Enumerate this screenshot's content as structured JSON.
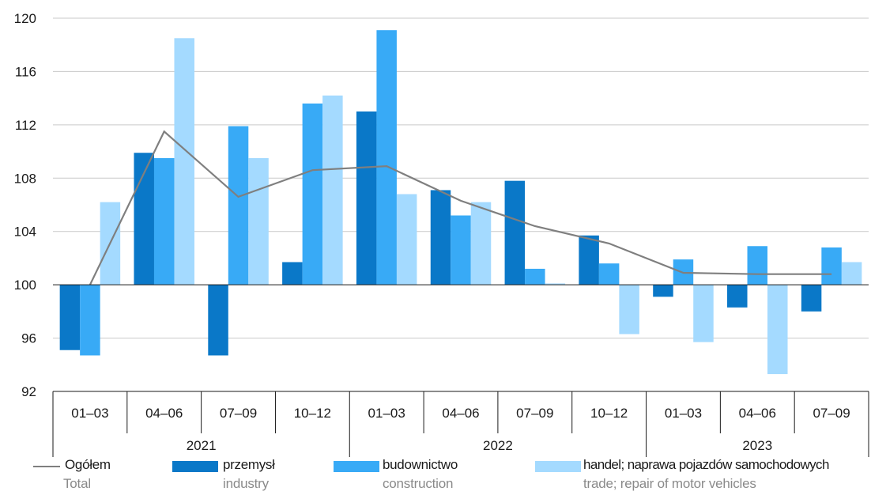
{
  "chart_data": {
    "type": "bar",
    "categories": [
      "01–03",
      "04–06",
      "07–09",
      "10–12",
      "01–03",
      "04–06",
      "07–09",
      "10–12",
      "01–03",
      "04–06",
      "07–09"
    ],
    "years": [
      {
        "label": "2021",
        "span": 4
      },
      {
        "label": "2022",
        "span": 4
      },
      {
        "label": "2023",
        "span": 3
      }
    ],
    "series": [
      {
        "name": "przemysł",
        "name_en": "industry",
        "type": "bar",
        "color": "#0a78c8",
        "values": [
          95.1,
          109.9,
          94.7,
          101.7,
          113.0,
          107.1,
          107.8,
          103.7,
          99.1,
          98.3,
          98.0
        ]
      },
      {
        "name": "budownictwo",
        "name_en": "construction",
        "type": "bar",
        "color": "#38aaf6",
        "values": [
          94.7,
          109.5,
          111.9,
          113.6,
          119.1,
          105.2,
          101.2,
          101.6,
          101.9,
          102.9,
          102.8
        ]
      },
      {
        "name": "handel; naprawa pojazdów samochodowych",
        "name_en": "trade; repair of motor vehicles",
        "type": "bar",
        "color": "#a4daff",
        "values": [
          106.2,
          118.5,
          109.5,
          114.2,
          106.8,
          106.2,
          100.1,
          96.3,
          95.7,
          93.3,
          101.7
        ]
      },
      {
        "name": "Ogółem",
        "name_en": "Total",
        "type": "line",
        "color": "#7f7f7f",
        "values": [
          100.0,
          111.5,
          106.6,
          108.6,
          108.9,
          106.3,
          104.4,
          103.1,
          100.9,
          100.8,
          100.8
        ]
      }
    ],
    "y_ticks": [
      92,
      96,
      100,
      104,
      108,
      112,
      116,
      120
    ],
    "ylim": [
      92,
      120
    ],
    "baseline": 100,
    "grid": "horizontal",
    "legend_position": "bottom",
    "xlabel": "",
    "ylabel": "",
    "title": ""
  }
}
